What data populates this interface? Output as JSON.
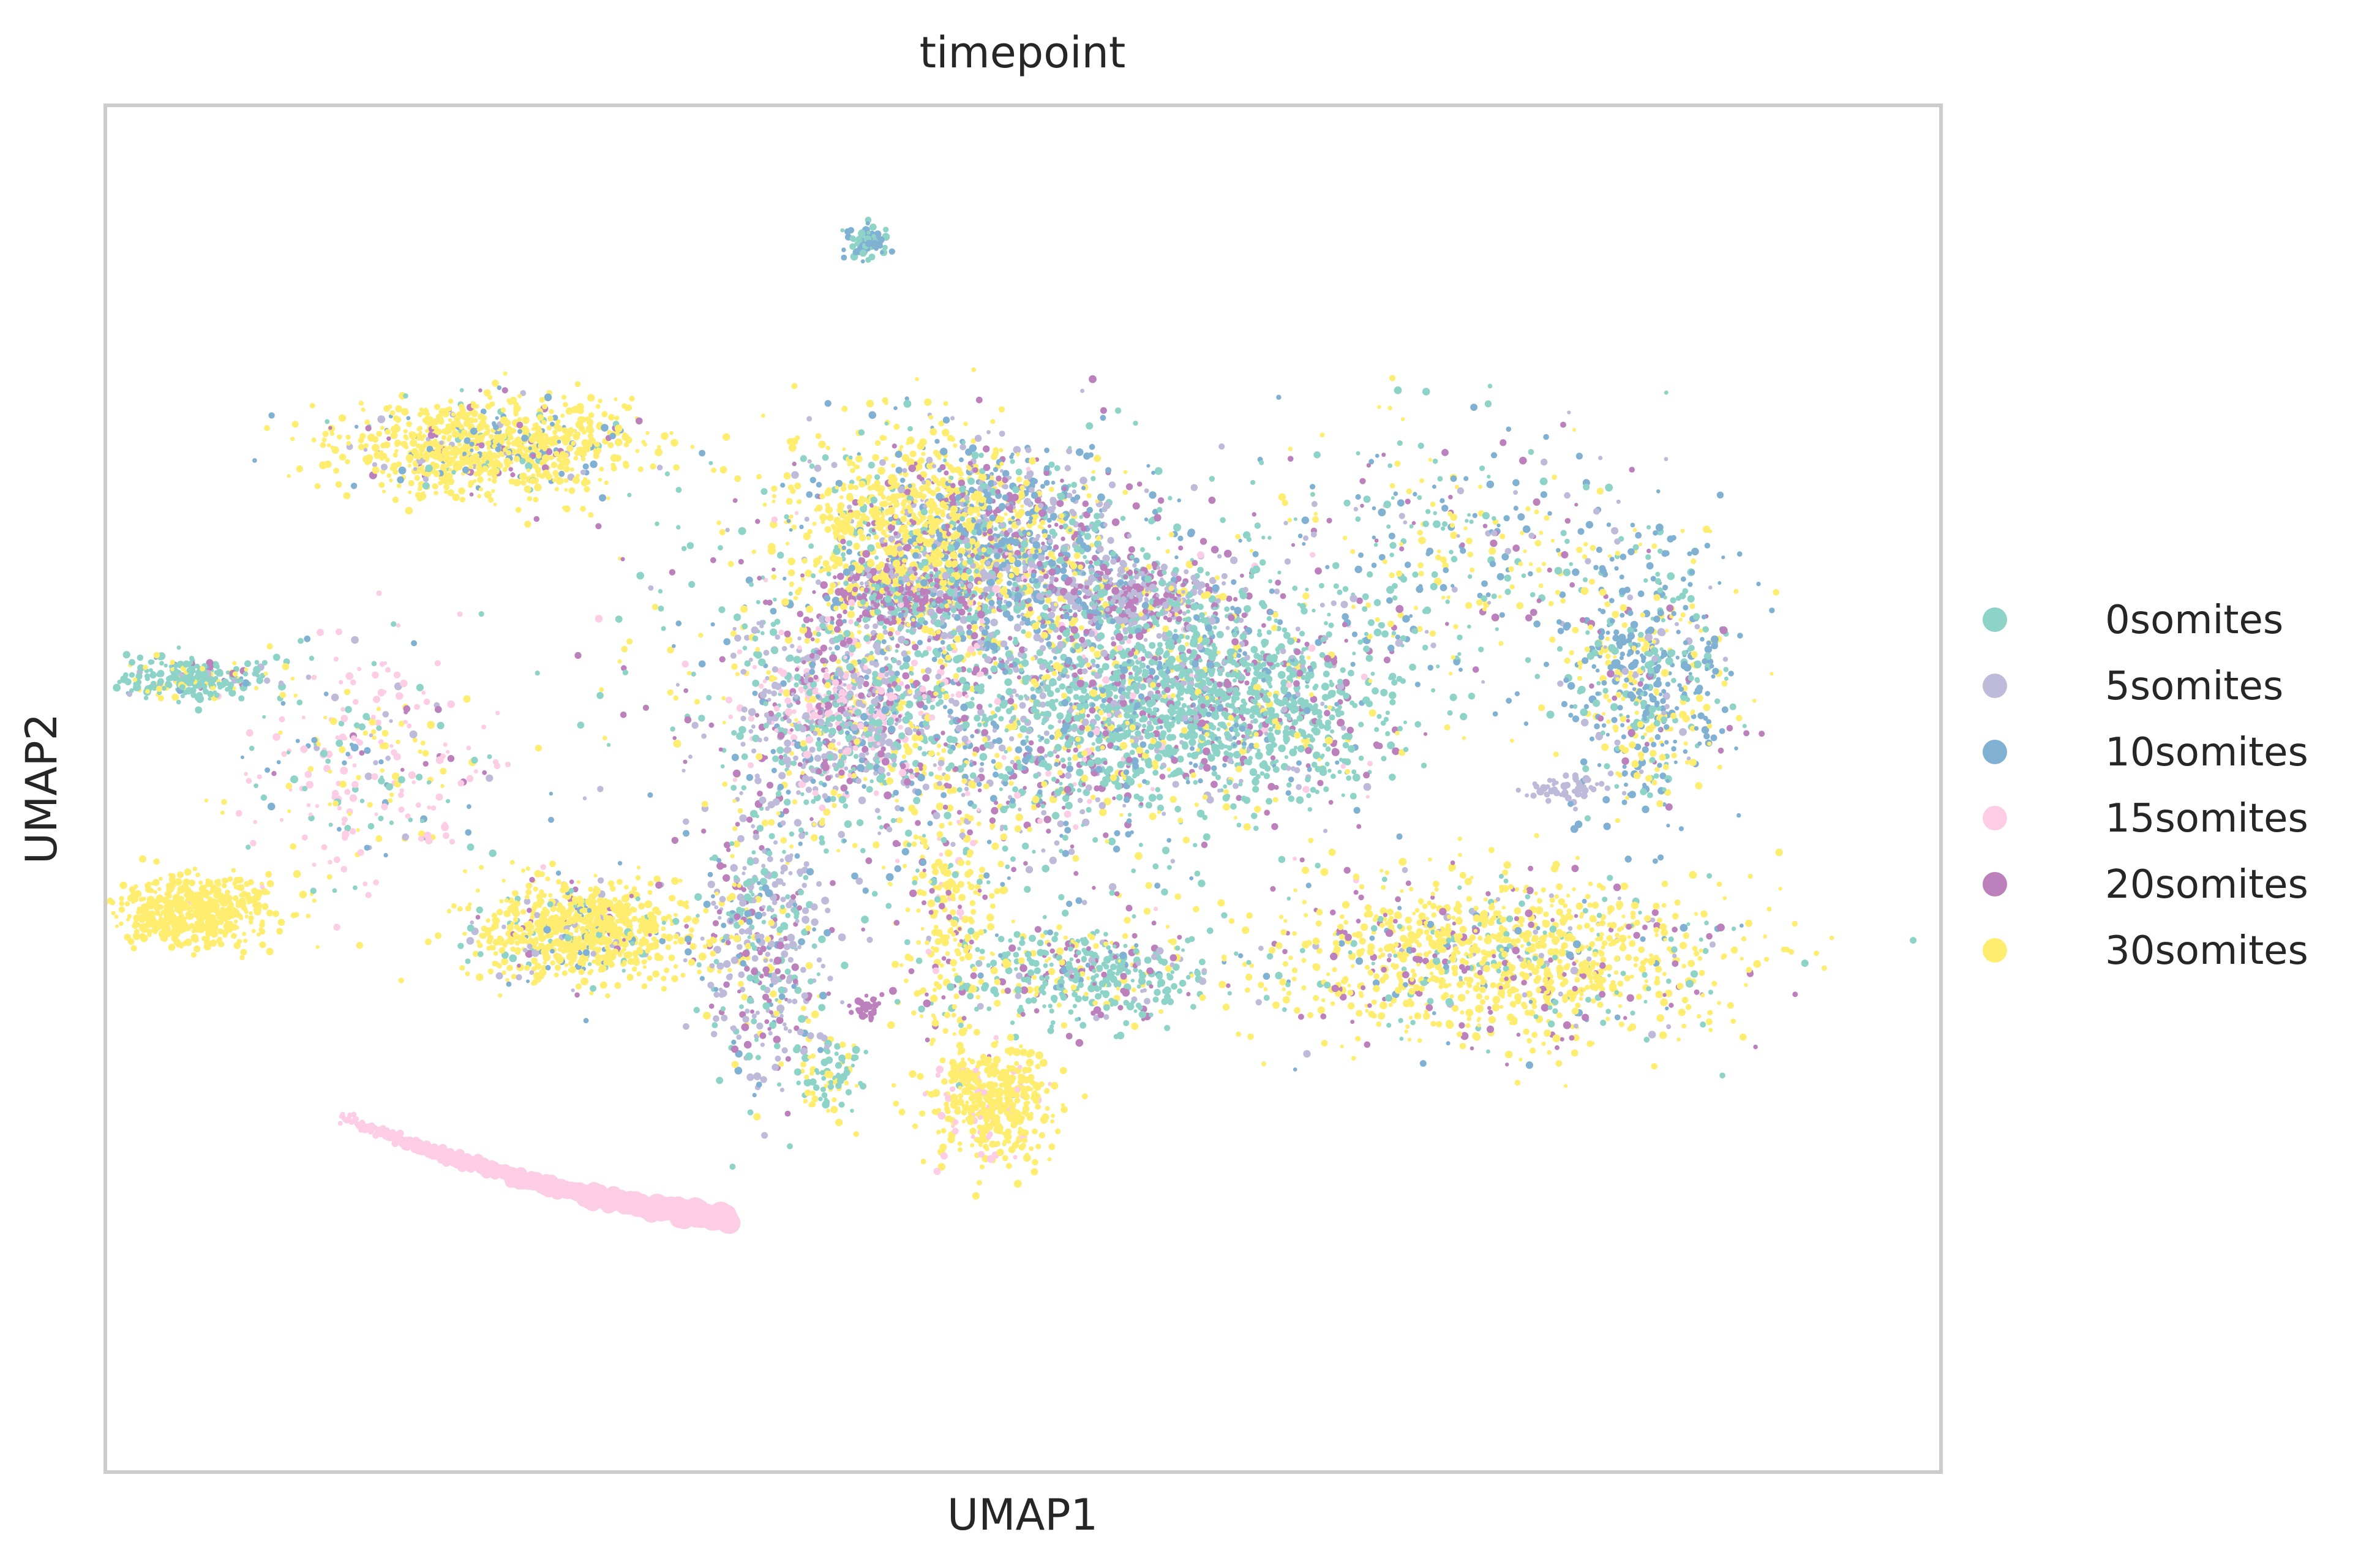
{
  "chart_data": {
    "type": "scatter",
    "title": "timepoint",
    "xlabel": "UMAP1",
    "ylabel": "UMAP2",
    "xlim": [
      -10,
      15
    ],
    "ylim": [
      -6,
      14
    ],
    "grid": false,
    "legend_placement": "right",
    "series": [
      {
        "name": "0somites",
        "color": "#8dd3c7"
      },
      {
        "name": "5somites",
        "color": "#bebada"
      },
      {
        "name": "10somites",
        "color": "#80b1d3"
      },
      {
        "name": "15somites",
        "color": "#fccde5"
      },
      {
        "name": "20somites",
        "color": "#bc80bd"
      },
      {
        "name": "30somites",
        "color": "#ffed6f"
      }
    ],
    "clusters": [
      {
        "x": 2.5,
        "y": 5.5,
        "sx": 2.2,
        "sy": 1.4,
        "n": 2600,
        "mix": [
          0.32,
          0.14,
          0.14,
          0.04,
          0.18,
          0.18
        ]
      },
      {
        "x": 5.0,
        "y": 5.3,
        "sx": 1.2,
        "sy": 0.6,
        "n": 1200,
        "mix": [
          0.78,
          0.04,
          0.04,
          0.0,
          0.1,
          0.04
        ]
      },
      {
        "x": 1.0,
        "y": 7.8,
        "sx": 0.8,
        "sy": 0.7,
        "n": 900,
        "mix": [
          0.05,
          0.05,
          0.05,
          0.0,
          0.05,
          0.8
        ]
      },
      {
        "x": 2.2,
        "y": 7.6,
        "sx": 0.8,
        "sy": 0.7,
        "n": 800,
        "mix": [
          0.15,
          0.2,
          0.35,
          0.0,
          0.2,
          0.1
        ]
      },
      {
        "x": 0.0,
        "y": 5.2,
        "sx": 0.6,
        "sy": 0.6,
        "n": 600,
        "mix": [
          0.2,
          0.3,
          0.05,
          0.25,
          0.15,
          0.05
        ]
      },
      {
        "x": 0.8,
        "y": 6.8,
        "sx": 0.5,
        "sy": 0.25,
        "n": 350,
        "mix": [
          0.25,
          0.15,
          0.05,
          0.0,
          0.5,
          0.05
        ]
      },
      {
        "x": 4.0,
        "y": 6.8,
        "sx": 0.5,
        "sy": 0.25,
        "n": 300,
        "mix": [
          0.1,
          0.4,
          0.05,
          0.0,
          0.4,
          0.05
        ]
      },
      {
        "x": -4.8,
        "y": 9.0,
        "sx": 1.0,
        "sy": 0.35,
        "n": 900,
        "mix": [
          0.04,
          0.04,
          0.08,
          0.0,
          0.04,
          0.8
        ]
      },
      {
        "x": -3.5,
        "y": 1.9,
        "sx": 0.8,
        "sy": 0.35,
        "n": 800,
        "mix": [
          0.05,
          0.03,
          0.04,
          0.0,
          0.04,
          0.84
        ]
      },
      {
        "x": -8.8,
        "y": 2.2,
        "sx": 0.6,
        "sy": 0.25,
        "n": 500,
        "mix": [
          0.0,
          0.0,
          0.0,
          0.0,
          0.0,
          1.0
        ]
      },
      {
        "x": -8.8,
        "y": 5.6,
        "sx": 0.5,
        "sy": 0.15,
        "n": 250,
        "mix": [
          0.7,
          0.05,
          0.05,
          0.0,
          0.05,
          0.15
        ]
      },
      {
        "x": -6.5,
        "y": 4.4,
        "sx": 0.8,
        "sy": 0.8,
        "n": 300,
        "mix": [
          0.15,
          0.05,
          0.1,
          0.45,
          0.05,
          0.2
        ]
      },
      {
        "x": 9.0,
        "y": 1.5,
        "sx": 1.6,
        "sy": 0.6,
        "n": 1200,
        "mix": [
          0.1,
          0.04,
          0.04,
          0.0,
          0.12,
          0.7
        ]
      },
      {
        "x": 3.3,
        "y": 1.3,
        "sx": 0.9,
        "sy": 0.35,
        "n": 450,
        "mix": [
          0.55,
          0.05,
          0.05,
          0.0,
          0.15,
          0.2
        ]
      },
      {
        "x": 11.0,
        "y": 5.6,
        "sx": 0.6,
        "sy": 1.0,
        "n": 600,
        "mix": [
          0.2,
          0.05,
          0.45,
          0.0,
          0.05,
          0.25
        ]
      },
      {
        "x": 8.5,
        "y": 7.5,
        "sx": 1.3,
        "sy": 1.0,
        "n": 350,
        "mix": [
          0.25,
          0.05,
          0.3,
          0.0,
          0.1,
          0.3
        ]
      },
      {
        "x": 1.5,
        "y": 2.0,
        "sx": 0.35,
        "sy": 1.2,
        "n": 250,
        "mix": [
          0.05,
          0.0,
          0.0,
          0.05,
          0.1,
          0.8
        ]
      },
      {
        "x": 2.1,
        "y": -0.6,
        "sx": 0.4,
        "sy": 0.4,
        "n": 450,
        "mix": [
          0.0,
          0.0,
          0.0,
          0.08,
          0.0,
          0.92
        ]
      },
      {
        "x": -1.0,
        "y": 1.8,
        "sx": 0.45,
        "sy": 1.1,
        "n": 500,
        "mix": [
          0.2,
          0.4,
          0.1,
          0.0,
          0.2,
          0.1
        ]
      },
      {
        "x": -0.1,
        "y": -0.2,
        "sx": 0.2,
        "sy": 0.3,
        "n": 90,
        "mix": [
          0.5,
          0.0,
          0.0,
          0.0,
          0.0,
          0.5
        ]
      },
      {
        "x": 0.4,
        "y": 12.0,
        "sx": 0.15,
        "sy": 0.12,
        "n": 70,
        "mix": [
          0.5,
          0.0,
          0.5,
          0.0,
          0.0,
          0.0
        ]
      },
      {
        "x": 9.9,
        "y": 4.0,
        "sx": 0.3,
        "sy": 0.1,
        "n": 50,
        "mix": [
          0.0,
          1.0,
          0.0,
          0.0,
          0.0,
          0.0
        ]
      },
      {
        "x": 0.4,
        "y": 0.8,
        "sx": 0.1,
        "sy": 0.08,
        "n": 30,
        "mix": [
          0.0,
          0.0,
          0.0,
          0.0,
          1.0,
          0.0
        ]
      }
    ],
    "trail": {
      "from": [
        -6.8,
        -0.8
      ],
      "to": [
        -1.5,
        -2.3
      ],
      "n": 320,
      "color_index": 3
    }
  }
}
